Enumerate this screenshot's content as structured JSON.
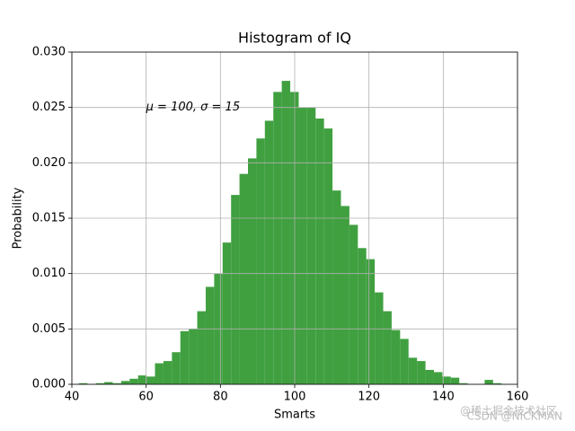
{
  "chart_data": {
    "type": "histogram",
    "title": "Histogram of IQ",
    "xlabel": "Smarts",
    "ylabel": "Probability",
    "bins": [
      41.9,
      44.18,
      46.45,
      48.73,
      51.0,
      53.28,
      55.56,
      57.83,
      60.11,
      62.38,
      64.66,
      66.94,
      69.21,
      71.49,
      73.76,
      76.04,
      78.32,
      80.59,
      82.87,
      85.14,
      87.42,
      89.7,
      91.97,
      94.25,
      96.52,
      98.8,
      101.08,
      103.35,
      105.63,
      107.9,
      110.18,
      112.46,
      114.73,
      117.01,
      119.28,
      121.56,
      123.84,
      126.11,
      128.39,
      130.66,
      132.94,
      135.22,
      137.49,
      139.77,
      142.04,
      144.32,
      146.6,
      148.87,
      151.15,
      153.42,
      155.7
    ],
    "values": [
      0.0001,
      0,
      0.0001,
      0.0002,
      0.0001,
      0.0003,
      0.0005,
      0.0008,
      0.0007,
      0.0019,
      0.0021,
      0.0029,
      0.0048,
      0.005,
      0.0066,
      0.0088,
      0.01,
      0.0128,
      0.0171,
      0.019,
      0.0204,
      0.0222,
      0.0238,
      0.0264,
      0.0274,
      0.0264,
      0.025,
      0.025,
      0.024,
      0.0231,
      0.0175,
      0.0161,
      0.0144,
      0.0123,
      0.0113,
      0.0083,
      0.0066,
      0.0049,
      0.0041,
      0.0024,
      0.0021,
      0.0013,
      0.0011,
      0.0007,
      0.0006,
      0.0001,
      0,
      0,
      0.0004,
      0.0001
    ],
    "color": "#40a040",
    "xlim": [
      40,
      160
    ],
    "xticks": [
      40,
      60,
      80,
      100,
      120,
      140,
      160
    ],
    "ylim": [
      0,
      0.03
    ],
    "yticks": [
      {
        "value": 0,
        "label": "0.000"
      },
      {
        "value": 0.005,
        "label": "0.005"
      },
      {
        "value": 0.01,
        "label": "0.010"
      },
      {
        "value": 0.015,
        "label": "0.015"
      },
      {
        "value": 0.02,
        "label": "0.020"
      },
      {
        "value": 0.025,
        "label": "0.025"
      },
      {
        "value": 0.03,
        "label": "0.030"
      }
    ],
    "grid": true,
    "annotation": {
      "text": "μ = 100,  σ = 15",
      "x": 60,
      "y": 0.025
    }
  },
  "watermark": [
    "@稀土掘金技术社区",
    "CSDN @NICKMAN"
  ]
}
